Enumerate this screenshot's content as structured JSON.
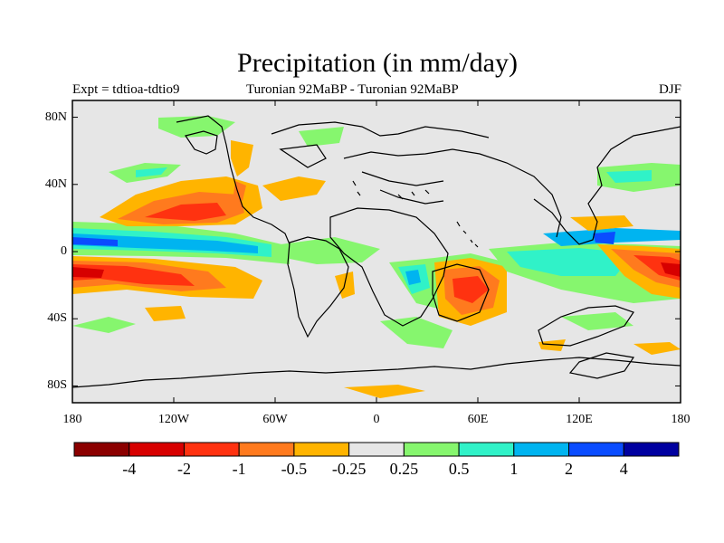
{
  "title": "Precipitation (in mm/day)",
  "subtitle_left": "Expt = tdtioa-tdtio9",
  "subtitle_center": "Turonian  92MaBP - Turonian  92MaBP",
  "subtitle_right": "DJF",
  "y_ticks": [
    {
      "label": "80N",
      "lat": 80
    },
    {
      "label": "40N",
      "lat": 40
    },
    {
      "label": "0",
      "lat": 0
    },
    {
      "label": "40S",
      "lat": -40
    },
    {
      "label": "80S",
      "lat": -80
    }
  ],
  "x_ticks": [
    {
      "label": "180",
      "lon": -180
    },
    {
      "label": "120W",
      "lon": -120
    },
    {
      "label": "60W",
      "lon": -60
    },
    {
      "label": "0",
      "lon": 0
    },
    {
      "label": "60E",
      "lon": 60
    },
    {
      "label": "120E",
      "lon": 120
    },
    {
      "label": "180",
      "lon": 180
    }
  ],
  "colorbar": {
    "colors": [
      "#8b0000",
      "#d70000",
      "#ff3210",
      "#ff7a1e",
      "#ffb400",
      "#e6e6e6",
      "#86f66e",
      "#30f2c8",
      "#00b4f0",
      "#0a4cff",
      "#0000a0"
    ],
    "labels": [
      "-4",
      "-2",
      "-1",
      "-0.5",
      "-0.25",
      "0.25",
      "0.5",
      "1",
      "2",
      "4"
    ]
  },
  "colors": {
    "background_fill": "#e6e6e6",
    "coastline": "#000000"
  }
}
